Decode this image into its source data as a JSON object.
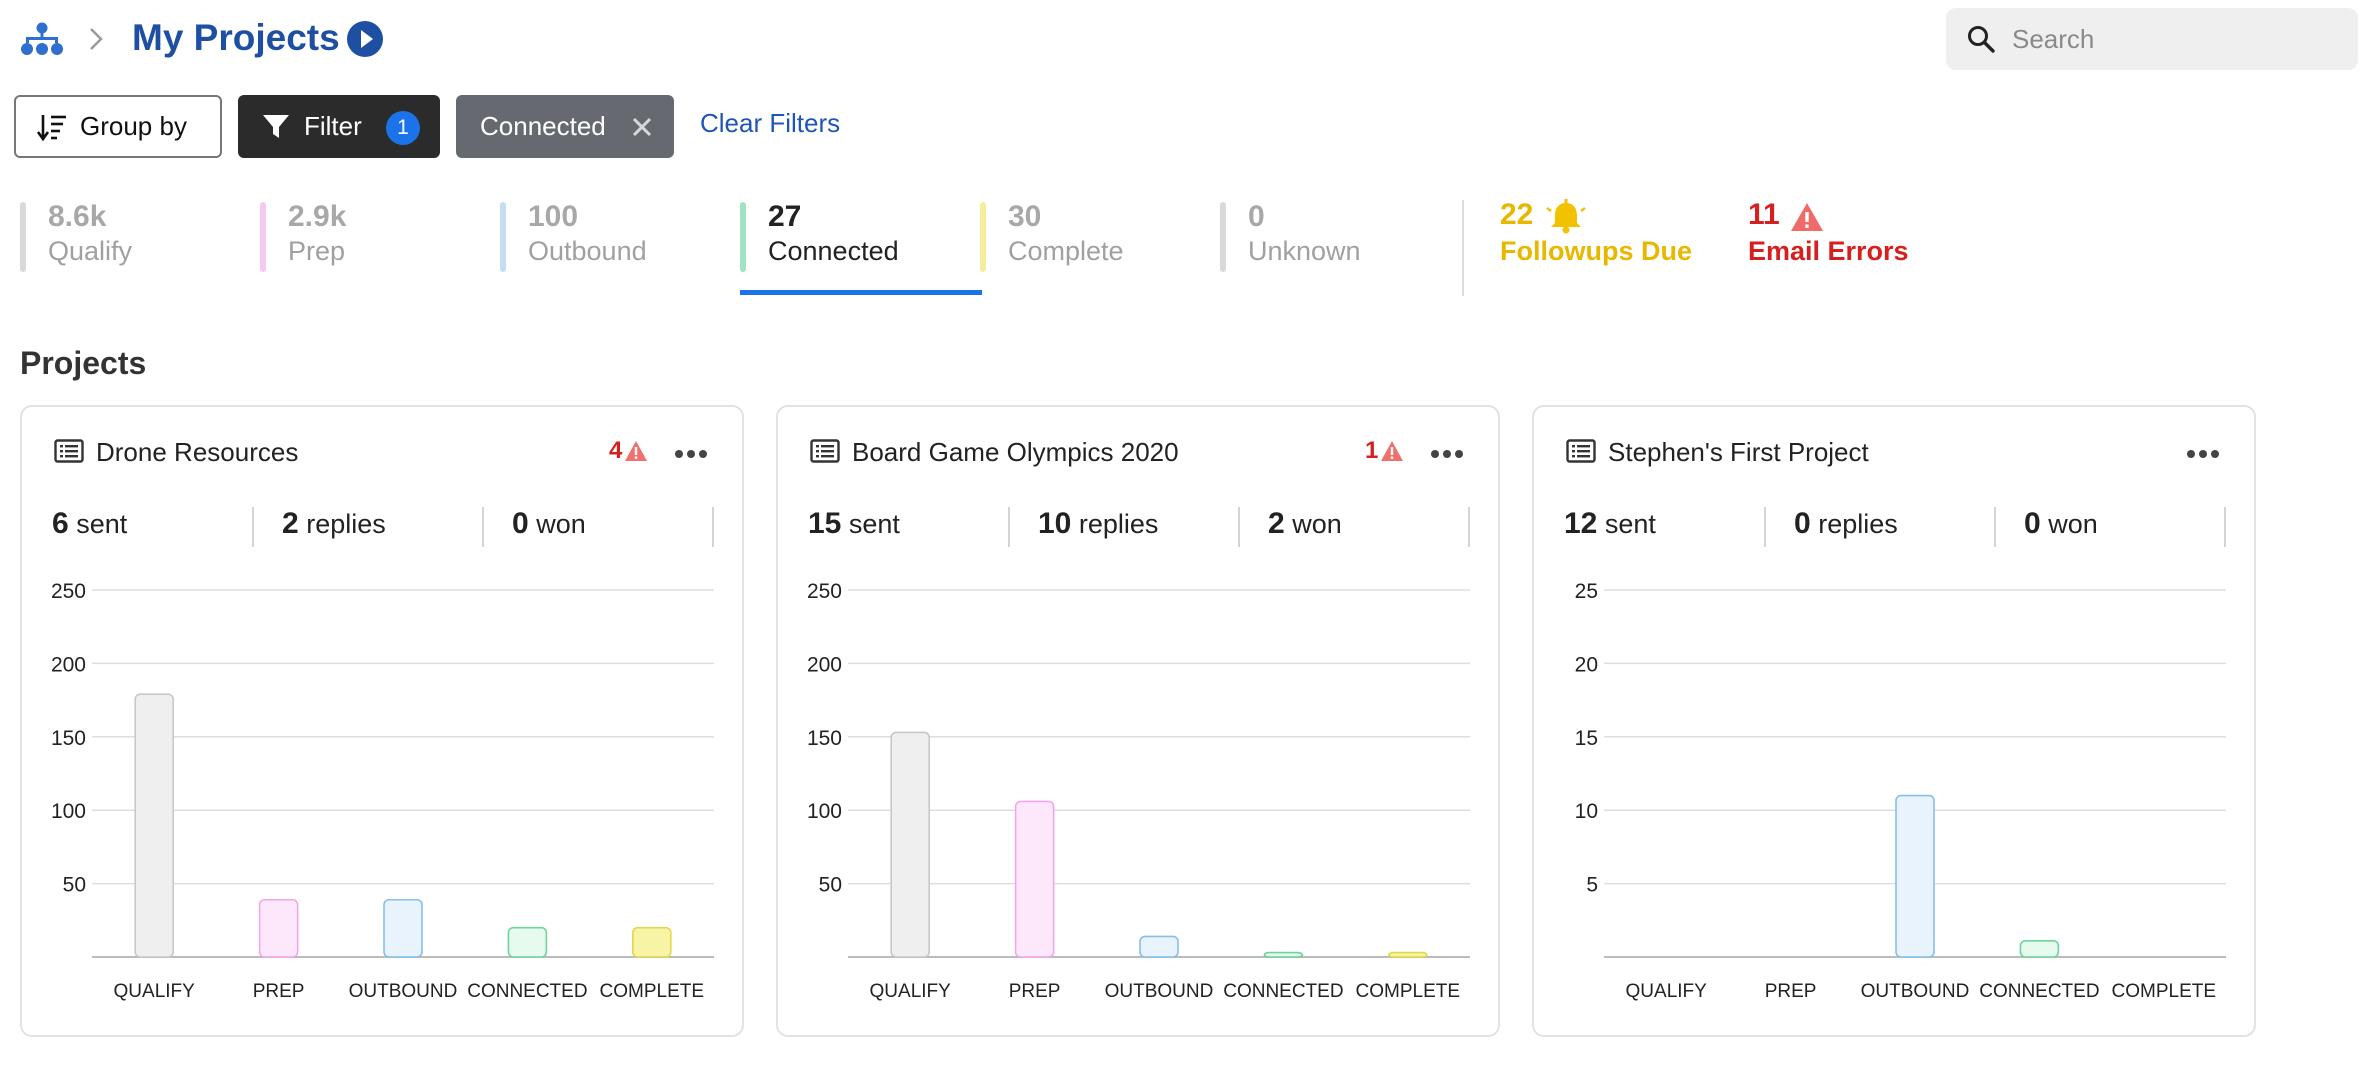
{
  "header": {
    "title": "My Projects",
    "search_placeholder": "Search"
  },
  "toolbar": {
    "group_by_label": "Group by",
    "filter_label": "Filter",
    "filter_count": "1",
    "active_filter_chip": "Connected",
    "clear_filters_label": "Clear Filters"
  },
  "stats": [
    {
      "value": "8.6k",
      "label": "Qualify",
      "color": "#d9d9d9",
      "active": false
    },
    {
      "value": "2.9k",
      "label": "Prep",
      "color": "#f6c9f3",
      "active": false
    },
    {
      "value": "100",
      "label": "Outbound",
      "color": "#c2def5",
      "active": false
    },
    {
      "value": "27",
      "label": "Connected",
      "color": "#9fe3c3",
      "active": true
    },
    {
      "value": "30",
      "label": "Complete",
      "color": "#f4ee9c",
      "active": false
    },
    {
      "value": "0",
      "label": "Unknown",
      "color": "#d9d9d9",
      "active": false
    }
  ],
  "alerts": {
    "followups": {
      "value": "22",
      "label": "Followups Due",
      "color": "#e8b800"
    },
    "email_errors": {
      "value": "11",
      "label": "Email Errors",
      "color": "#d62020"
    }
  },
  "projects_section_title": "Projects",
  "colors": {
    "accent": "#1a73e8",
    "title_blue": "#1e4fa3",
    "link_blue": "#1f56b5",
    "qualify_fill": "#efefef",
    "qualify_stroke": "#c8c8c8",
    "prep_fill": "#fde8fb",
    "prep_stroke": "#f1a6ec",
    "outbound_fill": "#e8f3fd",
    "outbound_stroke": "#86bfe9",
    "connected_fill": "#e6faee",
    "connected_stroke": "#6fd49c",
    "complete_fill": "#f8f4a6",
    "complete_stroke": "#e3d74e"
  },
  "projects": [
    {
      "name": "Drone Resources",
      "warning_count": "4",
      "sent": "6",
      "sent_label": "sent",
      "replies": "2",
      "replies_label": "replies",
      "won": "0",
      "won_label": "won",
      "chart_data": {
        "type": "bar",
        "categories": [
          "QUALIFY",
          "PREP",
          "OUTBOUND",
          "CONNECTED",
          "COMPLETE"
        ],
        "values": [
          179,
          39,
          39,
          20,
          20
        ],
        "yticks": [
          50,
          100,
          150,
          200,
          250
        ],
        "ylim": [
          0,
          250
        ],
        "grid": true
      }
    },
    {
      "name": "Board Game Olympics 2020",
      "warning_count": "1",
      "sent": "15",
      "sent_label": "sent",
      "replies": "10",
      "replies_label": "replies",
      "won": "2",
      "won_label": "won",
      "chart_data": {
        "type": "bar",
        "categories": [
          "QUALIFY",
          "PREP",
          "OUTBOUND",
          "CONNECTED",
          "COMPLETE"
        ],
        "values": [
          153,
          106,
          14,
          3,
          3
        ],
        "yticks": [
          50,
          100,
          150,
          200,
          250
        ],
        "ylim": [
          0,
          250
        ],
        "grid": true
      }
    },
    {
      "name": "Stephen's First Project",
      "warning_count": "",
      "sent": "12",
      "sent_label": "sent",
      "replies": "0",
      "replies_label": "replies",
      "won": "0",
      "won_label": "won",
      "chart_data": {
        "type": "bar",
        "categories": [
          "QUALIFY",
          "PREP",
          "OUTBOUND",
          "CONNECTED",
          "COMPLETE"
        ],
        "values": [
          0,
          0,
          11,
          1.1,
          0
        ],
        "yticks": [
          5,
          10,
          15,
          20,
          25
        ],
        "ylim": [
          0,
          25
        ],
        "grid": true
      }
    }
  ]
}
